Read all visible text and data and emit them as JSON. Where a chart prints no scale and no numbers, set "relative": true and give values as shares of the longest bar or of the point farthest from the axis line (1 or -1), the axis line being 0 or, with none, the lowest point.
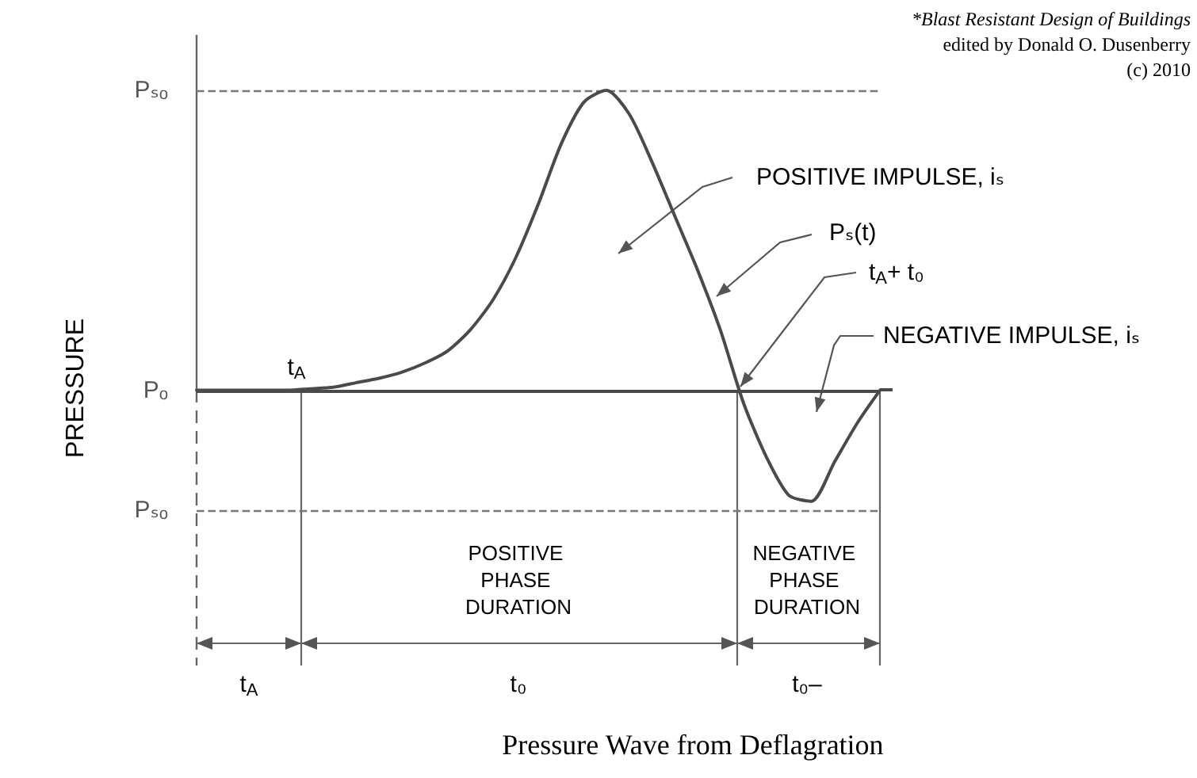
{
  "chart_data": {
    "type": "line",
    "title": "Pressure Wave from Deflagration",
    "ylabel": "PRESSURE",
    "relative": true,
    "categories": [
      null,
      null,
      null,
      null,
      null,
      null,
      null,
      null,
      null,
      null,
      null,
      null,
      null,
      null,
      null,
      null,
      null,
      null,
      null,
      null,
      null,
      null,
      null,
      null,
      null,
      null,
      null,
      null,
      null,
      null,
      null
    ],
    "series": [
      {
        "color": "#4a4a4a",
        "values": [
          0,
          0,
          0,
          0,
          0,
          0.005,
          0.01,
          0.025,
          0.04,
          0.06,
          0.09,
          0.13,
          0.2,
          0.3,
          0.44,
          0.62,
          0.82,
          0.96,
          1,
          0.92,
          0.76,
          0.58,
          0.4,
          0.2,
          -0.04,
          -0.22,
          -0.35,
          -0.37,
          -0.24,
          -0.11,
          0
        ]
      }
    ],
    "ref_lines": [
      {
        "axis": "y",
        "value": 1,
        "label": "Pₛₒ",
        "line_style": "dashed",
        "color": "#777777"
      },
      {
        "axis": "y",
        "value": 0,
        "label": "Pₒ",
        "line_style": "solid",
        "color": "#4a4a4a"
      },
      {
        "axis": "y",
        "value": -0.4,
        "label": "Pₛₒ",
        "line_style": "dashed",
        "color": "#777777"
      }
    ],
    "annotations": [
      "POSITIVE IMPULSE, iₛ",
      "Pₛ(t)",
      "t$_{A}$+ t₀",
      "NEGATIVE IMPULSE, iₛ",
      "t$_{A}$",
      "POSITIVE PHASE DURATION",
      "NEGATIVE PHASE DURATION",
      "t$_{A}$",
      "t₀",
      "t₀–",
      "*Blast Resistant Design of Buildings",
      "edited by Donald O. Dusenberry",
      "(c) 2010"
    ]
  }
}
